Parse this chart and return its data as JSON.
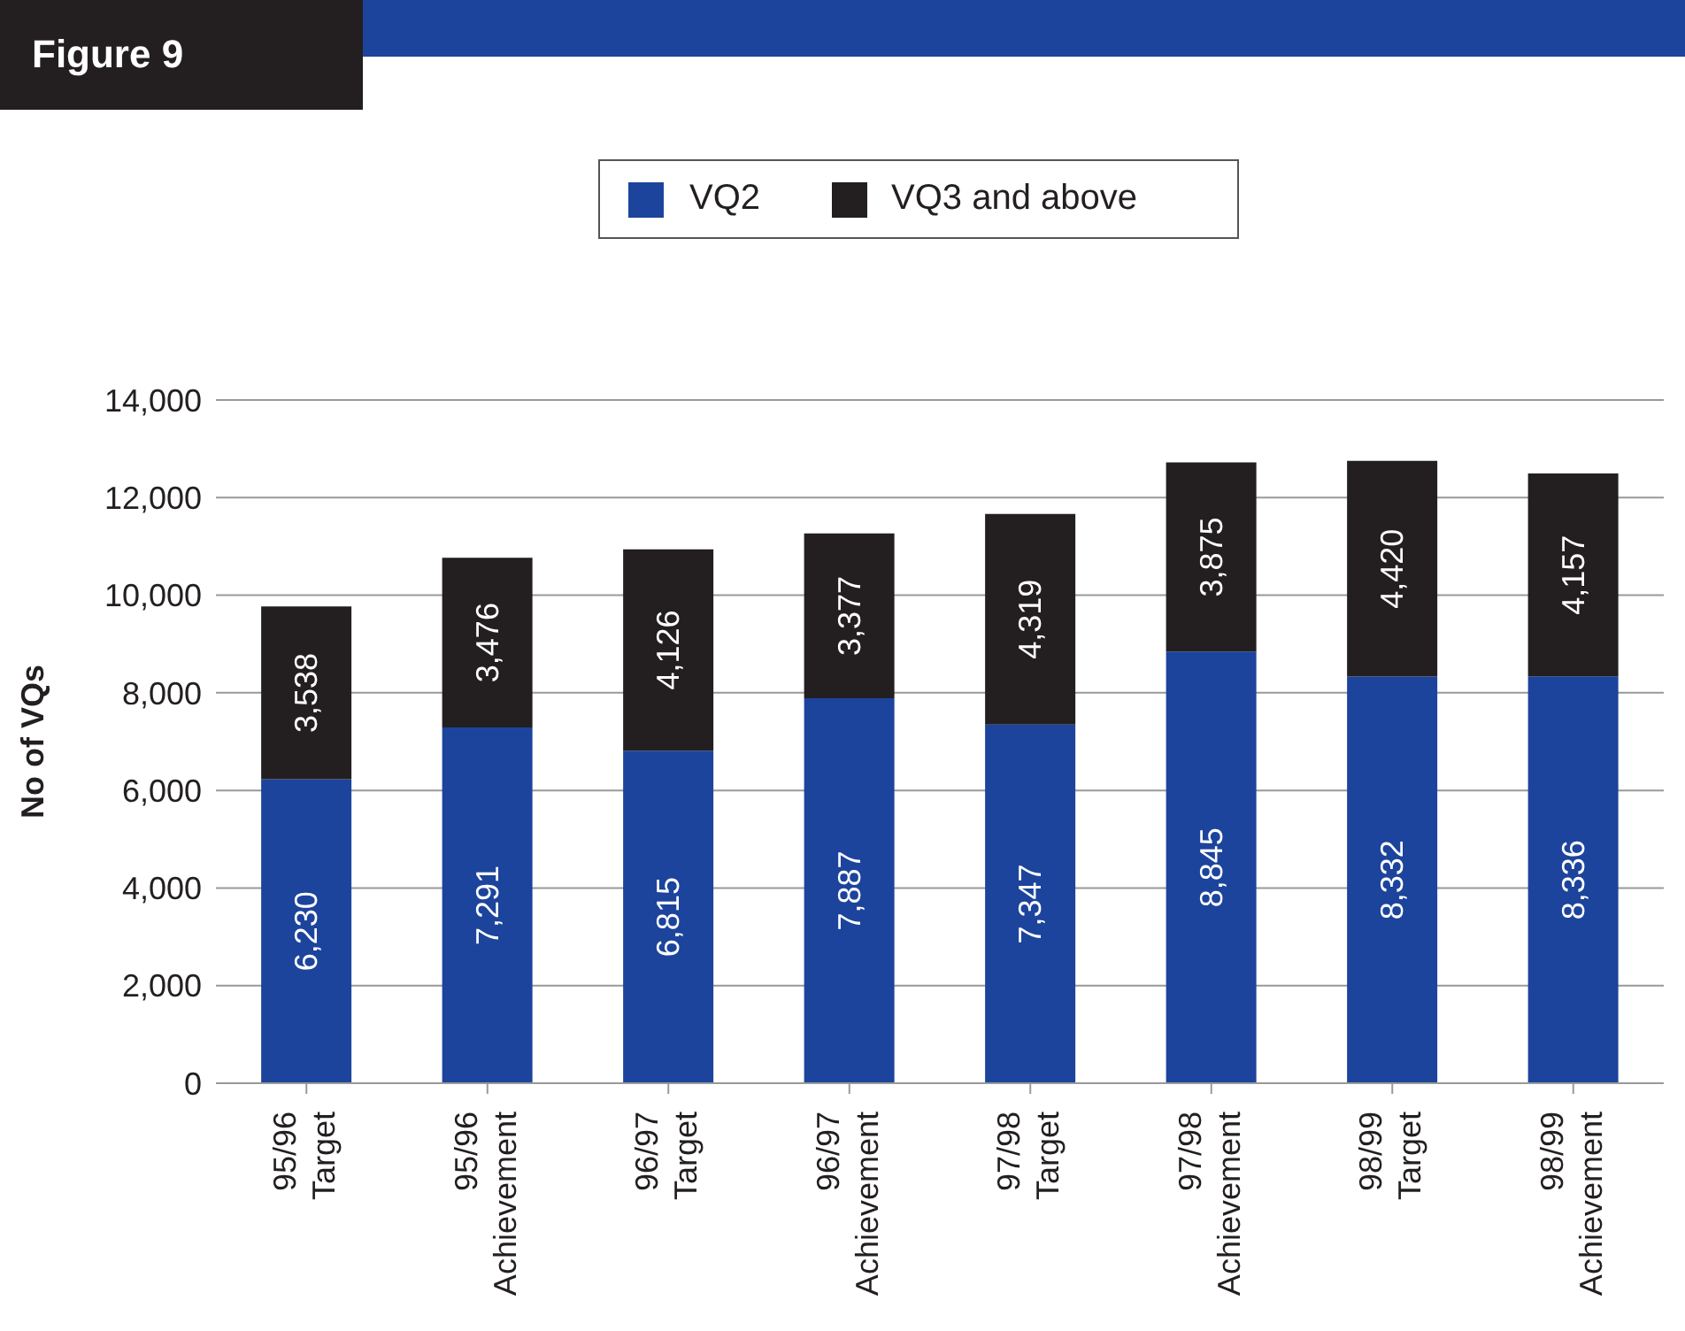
{
  "chart_data": {
    "type": "bar",
    "title": "Figure 9",
    "ylabel": "No of VQs",
    "categories": [
      "95/96 Target",
      "95/96 Achievement",
      "96/97 Target",
      "96/97 Achievement",
      "97/98 Target",
      "97/98 Achievement",
      "98/99 Target",
      "98/99 Achievement"
    ],
    "series": [
      {
        "name": "VQ2",
        "color": "#1c449c",
        "values": [
          6230,
          7291,
          6815,
          7887,
          7347,
          8845,
          8332,
          8336
        ],
        "value_labels": [
          "6,230",
          "7,291",
          "6,815",
          "7,887",
          "7,347",
          "8,845",
          "8,332",
          "8,336"
        ]
      },
      {
        "name": "VQ3 and above",
        "color": "#231f20",
        "values": [
          3538,
          3476,
          4126,
          3377,
          4319,
          3875,
          4420,
          4157
        ],
        "value_labels": [
          "3,538",
          "3,476",
          "4,126",
          "3,377",
          "4,319",
          "3,875",
          "4,420",
          "4,157"
        ]
      }
    ],
    "stacked": true,
    "ylim": [
      0,
      14000
    ],
    "yticks": [
      0,
      {
        "value": 2000,
        "label": "2,000"
      },
      {
        "value": 4000,
        "label": "4,000"
      },
      {
        "value": 6000,
        "label": "6,000"
      },
      {
        "value": 8000,
        "label": "8,000"
      },
      {
        "value": 10000,
        "label": "10,000"
      },
      {
        "value": 12000,
        "label": "12,000"
      },
      {
        "value": 14000,
        "label": "14,000"
      }
    ],
    "grid": "y",
    "legend": "top"
  }
}
